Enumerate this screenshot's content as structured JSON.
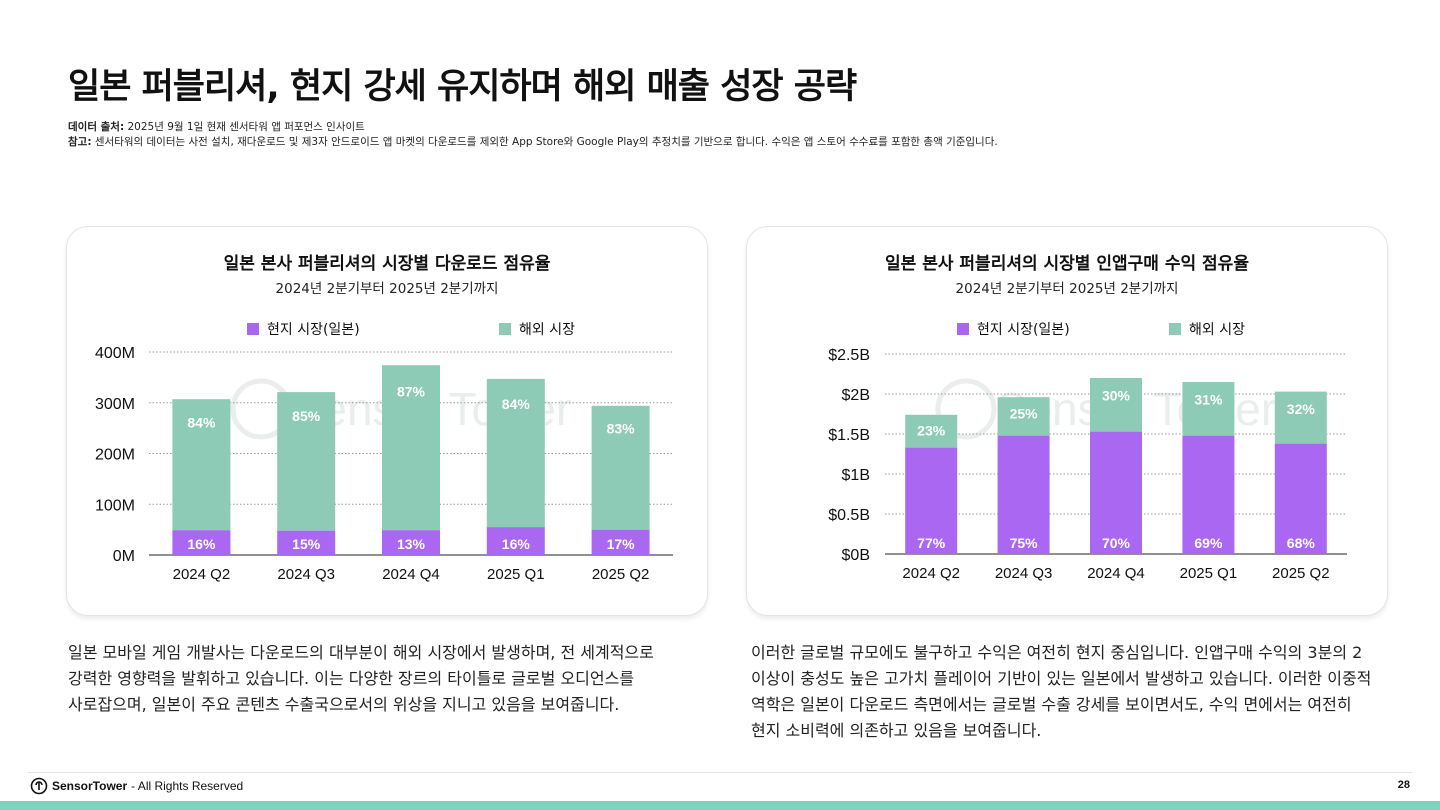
{
  "page": {
    "title": "일본 퍼블리셔, 현지 강세 유지하며 해외 매출 성장 공략",
    "source_label": "데이터 출처:",
    "source_text": " 2025년 9월 1일 현재 센서타워 앱 퍼포먼스 인사이트",
    "note_label": "참고:",
    "note_text": " 센서타워의 데이터는 사전 설치, 재다운로드 및 제3자 안드로이드 앱 마켓의 다운로드를 제외한 App Store와 Google Play의 추정치를 기반으로 합니다. 수익은 앱 스토어 수수료를 포함한 총액 기준입니다.",
    "watermark": "Sensor Tower",
    "body_left": "일본 모바일 게임 개발사는 다운로드의 대부분이 해외 시장에서 발생하며, 전 세계적으로 강력한 영향력을 발휘하고 있습니다. 이는 다양한 장르의 타이틀로 글로벌 오디언스를 사로잡으며, 일본이 주요 콘텐츠 수출국으로서의 위상을 지니고 있음을 보여줍니다.",
    "body_right": "이러한 글로벌 규모에도 불구하고 수익은 여전히 현지 중심입니다. 인앱구매 수익의 3분의 2 이상이 충성도 높은 고가치 플레이어 기반이 있는 일본에서 발생하고 있습니다. 이러한 이중적 역학은 일본이 다운로드 측면에서는 글로벌 수출 강세를 보이면서도, 수익 면에서는 여전히 현지 소비력에 의존하고 있음을 보여줍니다.",
    "footer_brand": "SensorTower",
    "footer_text": "- All Rights Reserved",
    "page_number": "28"
  },
  "colors": {
    "domestic": "#a967f2",
    "overseas": "#8ecbb7",
    "grid": "#9a9a9a",
    "accent": "#7fd2bd"
  },
  "chart_data": [
    {
      "type": "bar",
      "stacked": true,
      "title": "일본 본사 퍼블리셔의 시장별 다운로드 점유율",
      "subtitle": "2024년 2분기부터 2025년 2분기까지",
      "categories": [
        "2024 Q2",
        "2024 Q3",
        "2024 Q4",
        "2025 Q1",
        "2025 Q2"
      ],
      "series": [
        {
          "name": "현지 시장(일본)",
          "color": "#a967f2",
          "values": [
            49,
            48,
            49,
            55,
            50
          ],
          "labels": [
            "16%",
            "15%",
            "13%",
            "16%",
            "17%"
          ]
        },
        {
          "name": "해외 시장",
          "color": "#8ecbb7",
          "values": [
            258,
            273,
            325,
            292,
            244
          ],
          "labels": [
            "84%",
            "85%",
            "87%",
            "84%",
            "83%"
          ]
        }
      ],
      "ylim": [
        0,
        400
      ],
      "yticks": [
        0,
        100,
        200,
        300,
        400
      ],
      "ytick_labels": [
        "0M",
        "100M",
        "200M",
        "300M",
        "400M"
      ],
      "grid": true,
      "legend": "top-center"
    },
    {
      "type": "bar",
      "stacked": true,
      "title": "일본 본사 퍼블리셔의 시장별 인앱구매 수익 점유율",
      "subtitle": "2024년 2분기부터 2025년 2분기까지",
      "categories": [
        "2024 Q2",
        "2024 Q3",
        "2024 Q4",
        "2025 Q1",
        "2025 Q2"
      ],
      "series": [
        {
          "name": "현지 시장(일본)",
          "color": "#a967f2",
          "values": [
            1.33,
            1.48,
            1.53,
            1.48,
            1.38
          ],
          "labels": [
            "77%",
            "75%",
            "70%",
            "69%",
            "68%"
          ]
        },
        {
          "name": "해외 시장",
          "color": "#8ecbb7",
          "values": [
            0.41,
            0.48,
            0.67,
            0.67,
            0.65
          ],
          "labels": [
            "23%",
            "25%",
            "30%",
            "31%",
            "32%"
          ]
        }
      ],
      "ylim": [
        0,
        2.5
      ],
      "yticks": [
        0,
        0.5,
        1,
        1.5,
        2,
        2.5
      ],
      "ytick_labels": [
        "$0B",
        "$0.5B",
        "$1B",
        "$1.5B",
        "$2B",
        "$2.5B"
      ],
      "grid": true,
      "legend": "top-center"
    }
  ]
}
